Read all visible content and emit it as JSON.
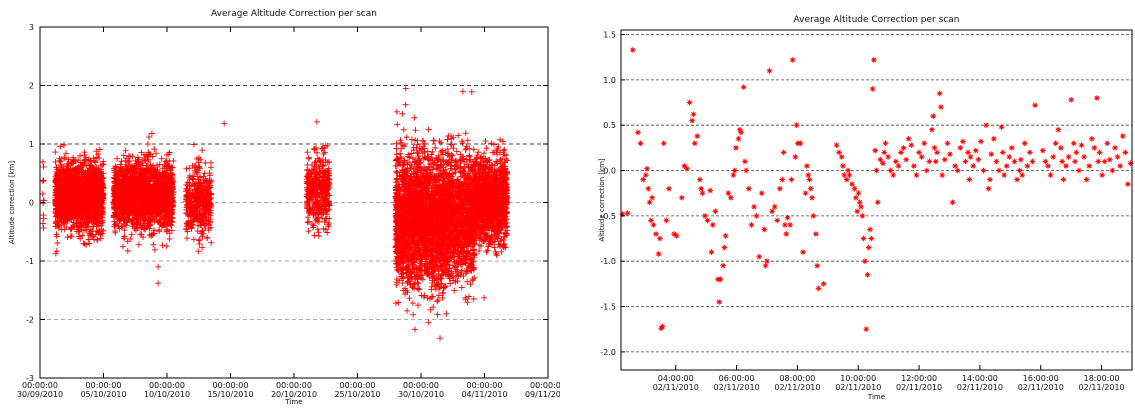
{
  "chart_data": [
    {
      "type": "scatter",
      "title": "Average Altitude Correction per scan",
      "xlabel": "Time",
      "ylabel": "Altitude correction [km]",
      "x_tick_labels": [
        [
          "00:00:00",
          "30/09/2010"
        ],
        [
          "00:00:00",
          "05/10/2010"
        ],
        [
          "00:00:00",
          "10/10/2010"
        ],
        [
          "00:00:00",
          "15/10/2010"
        ],
        [
          "00:00:00",
          "20/10/2010"
        ],
        [
          "00:00:00",
          "25/10/2010"
        ],
        [
          "00:00:00",
          "30/10/2010"
        ],
        [
          "00:00:00",
          "04/11/2010"
        ],
        [
          "00:00:00",
          "09/11/2010"
        ]
      ],
      "xlim_days": [
        0,
        40
      ],
      "ylim": [
        -3,
        3
      ],
      "y_ticks": [
        -3,
        -2,
        -1,
        0,
        1,
        2,
        3
      ],
      "marker": "+",
      "color": "#ff0000",
      "grid": "dashed horizontal lines at -2, -1, 0, 1, 2",
      "clusters": [
        {
          "x_range": [
            0.2,
            0.3
          ],
          "y_center": 0.2,
          "spread": 0.4,
          "count": 12
        },
        {
          "x_range": [
            1.2,
            5.0
          ],
          "y_center": 0.1,
          "spread": 0.28,
          "count": 1800
        },
        {
          "x_range": [
            5.8,
            10.5
          ],
          "y_center": 0.12,
          "spread": 0.28,
          "count": 1900
        },
        {
          "x_range": [
            11.5,
            13.5
          ],
          "y_center": 0.0,
          "spread": 0.3,
          "count": 450
        },
        {
          "x_range": [
            21.0,
            22.8
          ],
          "y_center": 0.2,
          "spread": 0.28,
          "count": 420
        },
        {
          "x_range": [
            28.0,
            32.3
          ],
          "y_center": -0.3,
          "spread": 0.55,
          "count": 2600
        },
        {
          "x_range": [
            32.3,
            34.2
          ],
          "y_center": -0.25,
          "spread": 0.5,
          "count": 900
        },
        {
          "x_range": [
            34.2,
            36.8
          ],
          "y_center": 0.05,
          "spread": 0.35,
          "count": 1300
        }
      ],
      "outliers": [
        {
          "x": 9.3,
          "y": -1.1
        },
        {
          "x": 9.3,
          "y": -1.38
        },
        {
          "x": 14.5,
          "y": 1.35
        },
        {
          "x": 21.8,
          "y": 1.38
        },
        {
          "x": 28.1,
          "y": 1.55
        },
        {
          "x": 28.8,
          "y": 1.95
        },
        {
          "x": 33.3,
          "y": 1.9
        },
        {
          "x": 31.5,
          "y": -2.32
        },
        {
          "x": 30.6,
          "y": -2.05
        }
      ]
    },
    {
      "type": "scatter",
      "title": "Average Altitude Correction per scan",
      "xlabel": "Time",
      "ylabel": "Altitude correction [km]",
      "x_tick_labels": [
        [
          "04:00:00",
          "02/11/2010"
        ],
        [
          "06:00:00",
          "02/11/2010"
        ],
        [
          "08:00:00",
          "02/11/2010"
        ],
        [
          "10:00:00",
          "02/11/2010"
        ],
        [
          "12:00:00",
          "02/11/2010"
        ],
        [
          "14:00:00",
          "02/11/2010"
        ],
        [
          "16:00:00",
          "02/11/2010"
        ],
        [
          "18:00:00",
          "02/11/2010"
        ]
      ],
      "x_ticks_hours": [
        4,
        6,
        8,
        10,
        12,
        14,
        16,
        18
      ],
      "xlim_hours": [
        2.2,
        19.0
      ],
      "y_ticks": [
        "1.5",
        "1.0",
        "0.5",
        "0.0",
        "-0.5",
        "-1.0",
        "-1.5",
        "-2.0"
      ],
      "y_tick_values": [
        1.5,
        1.0,
        0.5,
        0.0,
        -0.5,
        -1.0,
        -1.5,
        -2.0
      ],
      "ylim": [
        -2.2,
        1.55
      ],
      "marker": "*",
      "color": "#ff0000",
      "grid": "dashed horizontal lines at each labelled tick",
      "points": [
        [
          2.3,
          -0.48
        ],
        [
          2.5,
          -0.47
        ],
        [
          2.7,
          1.33
        ],
        [
          2.9,
          0.42
        ],
        [
          3.0,
          0.3
        ],
        [
          3.1,
          -0.1
        ],
        [
          3.2,
          -0.05
        ],
        [
          3.25,
          0.02
        ],
        [
          3.3,
          -0.2
        ],
        [
          3.35,
          -0.35
        ],
        [
          3.4,
          -0.55
        ],
        [
          3.45,
          -0.3
        ],
        [
          3.5,
          -0.6
        ],
        [
          3.6,
          -0.7
        ],
        [
          3.7,
          -0.92
        ],
        [
          3.75,
          -0.75
        ],
        [
          3.8,
          -1.74
        ],
        [
          3.85,
          -1.72
        ],
        [
          3.9,
          0.3
        ],
        [
          4.0,
          -0.55
        ],
        [
          4.1,
          -0.2
        ],
        [
          4.3,
          -0.7
        ],
        [
          4.4,
          -0.72
        ],
        [
          4.6,
          -0.3
        ],
        [
          4.7,
          0.05
        ],
        [
          4.8,
          0.02
        ],
        [
          4.9,
          0.75
        ],
        [
          5.0,
          0.55
        ],
        [
          5.05,
          0.62
        ],
        [
          5.1,
          0.3
        ],
        [
          5.2,
          0.38
        ],
        [
          5.3,
          -0.1
        ],
        [
          5.35,
          -0.2
        ],
        [
          5.4,
          -0.25
        ],
        [
          5.5,
          -0.5
        ],
        [
          5.6,
          -0.55
        ],
        [
          5.7,
          -0.22
        ],
        [
          5.75,
          -0.9
        ],
        [
          5.8,
          -0.6
        ],
        [
          5.9,
          -0.45
        ],
        [
          6.0,
          -1.2
        ],
        [
          6.05,
          -1.45
        ],
        [
          6.1,
          -1.2
        ],
        [
          6.2,
          -1.05
        ],
        [
          6.25,
          -0.85
        ],
        [
          6.3,
          -0.72
        ],
        [
          6.4,
          -0.25
        ],
        [
          6.5,
          -0.3
        ],
        [
          6.6,
          -0.05
        ],
        [
          6.65,
          0.0
        ],
        [
          6.7,
          0.25
        ],
        [
          6.8,
          0.35
        ],
        [
          6.85,
          0.45
        ],
        [
          6.9,
          0.42
        ],
        [
          7.0,
          0.92
        ],
        [
          7.05,
          0.1
        ],
        [
          7.1,
          0.0
        ],
        [
          7.2,
          -0.2
        ],
        [
          7.3,
          -0.6
        ],
        [
          7.4,
          -0.4
        ],
        [
          7.5,
          -0.5
        ],
        [
          7.6,
          -0.95
        ],
        [
          7.7,
          -0.25
        ],
        [
          7.8,
          -0.65
        ],
        [
          7.85,
          -1.05
        ],
        [
          7.9,
          -1.0
        ],
        [
          8.0,
          1.1
        ],
        [
          8.1,
          -0.45
        ],
        [
          8.2,
          -0.4
        ],
        [
          8.3,
          -0.55
        ],
        [
          8.4,
          -0.2
        ],
        [
          8.5,
          -0.1
        ],
        [
          8.55,
          0.2
        ],
        [
          8.6,
          -0.6
        ],
        [
          8.65,
          -0.7
        ],
        [
          8.7,
          -0.52
        ],
        [
          8.8,
          -0.6
        ],
        [
          8.85,
          -0.1
        ],
        [
          8.9,
          1.22
        ],
        [
          9.0,
          0.15
        ],
        [
          9.05,
          0.5
        ],
        [
          9.1,
          0.3
        ],
        [
          9.2,
          0.3
        ],
        [
          9.3,
          -0.9
        ],
        [
          9.4,
          -0.25
        ],
        [
          9.45,
          0.05
        ],
        [
          9.5,
          -0.05
        ],
        [
          9.55,
          -0.1
        ],
        [
          9.6,
          -0.2
        ],
        [
          9.65,
          -0.3
        ],
        [
          9.7,
          -0.5
        ],
        [
          9.8,
          -0.7
        ],
        [
          9.85,
          -1.05
        ],
        [
          9.9,
          -1.3
        ],
        [
          10.1,
          -1.25
        ],
        [
          10.6,
          0.28
        ],
        [
          10.7,
          0.2
        ],
        [
          10.8,
          0.15
        ],
        [
          10.85,
          0.05
        ],
        [
          10.9,
          -0.05
        ],
        [
          11.0,
          -0.1
        ],
        [
          11.05,
          0.0
        ],
        [
          11.1,
          -0.05
        ],
        [
          11.2,
          -0.15
        ],
        [
          11.3,
          -0.2
        ],
        [
          11.35,
          -0.3
        ],
        [
          11.4,
          -0.45
        ],
        [
          11.45,
          -0.25
        ],
        [
          11.5,
          -0.35
        ],
        [
          11.55,
          -0.4
        ],
        [
          11.6,
          -0.5
        ],
        [
          11.65,
          -0.75
        ],
        [
          11.7,
          -1.0
        ],
        [
          11.75,
          -1.75
        ],
        [
          11.8,
          -1.15
        ],
        [
          11.85,
          -0.85
        ],
        [
          11.9,
          -0.65
        ],
        [
          11.95,
          -0.75
        ],
        [
          12.0,
          0.9
        ],
        [
          12.05,
          1.22
        ],
        [
          12.1,
          0.22
        ],
        [
          12.15,
          0.0
        ],
        [
          12.2,
          -0.35
        ],
        [
          12.3,
          0.12
        ],
        [
          12.4,
          0.08
        ],
        [
          12.45,
          0.2
        ],
        [
          12.5,
          0.3
        ],
        [
          12.6,
          0.15
        ],
        [
          12.7,
          0.0
        ],
        [
          12.8,
          -0.05
        ],
        [
          12.9,
          0.1
        ],
        [
          13.0,
          0.05
        ],
        [
          13.1,
          0.2
        ],
        [
          13.2,
          0.25
        ],
        [
          13.3,
          0.12
        ],
        [
          13.4,
          0.35
        ],
        [
          13.5,
          0.28
        ],
        [
          13.6,
          0.05
        ],
        [
          13.7,
          -0.05
        ],
        [
          13.8,
          0.2
        ],
        [
          13.9,
          0.15
        ],
        [
          14.0,
          0.3
        ],
        [
          14.1,
          0.0
        ],
        [
          14.2,
          0.1
        ],
        [
          14.3,
          0.45
        ],
        [
          14.35,
          0.6
        ],
        [
          14.4,
          0.25
        ],
        [
          14.45,
          0.1
        ],
        [
          14.5,
          0.2
        ],
        [
          14.6,
          0.85
        ],
        [
          14.65,
          0.7
        ],
        [
          14.7,
          -0.05
        ],
        [
          14.8,
          0.12
        ],
        [
          14.9,
          0.3
        ],
        [
          15.0,
          0.18
        ],
        [
          15.1,
          -0.35
        ],
        [
          15.2,
          0.05
        ],
        [
          15.3,
          0.0
        ],
        [
          15.4,
          0.25
        ],
        [
          15.5,
          0.32
        ],
        [
          15.6,
          0.1
        ],
        [
          15.7,
          0.2
        ],
        [
          15.75,
          -0.1
        ],
        [
          15.8,
          0.15
        ],
        [
          15.9,
          0.05
        ],
        [
          16.0,
          0.22
        ],
        [
          16.1,
          0.12
        ],
        [
          16.2,
          0.32
        ],
        [
          16.3,
          0.0
        ],
        [
          16.4,
          0.5
        ],
        [
          16.5,
          -0.2
        ],
        [
          16.55,
          -0.1
        ],
        [
          16.6,
          0.18
        ],
        [
          16.7,
          0.35
        ],
        [
          16.8,
          0.1
        ],
        [
          16.9,
          0.0
        ],
        [
          17.0,
          0.48
        ],
        [
          17.05,
          0.2
        ],
        [
          17.1,
          -0.05
        ],
        [
          17.2,
          0.05
        ],
        [
          17.3,
          0.15
        ],
        [
          17.4,
          0.25
        ],
        [
          17.5,
          0.1
        ],
        [
          17.6,
          -0.1
        ],
        [
          17.7,
          0.0
        ],
        [
          17.75,
          0.12
        ],
        [
          17.8,
          -0.05
        ],
        [
          17.9,
          0.3
        ],
        [
          18.0,
          0.05
        ],
        [
          18.1,
          0.2
        ],
        [
          18.2,
          0.1
        ],
        [
          18.3,
          0.72
        ],
        [
          18.6,
          0.22
        ],
        [
          18.7,
          0.1
        ],
        [
          18.8,
          0.05
        ],
        [
          18.9,
          -0.05
        ],
        [
          19.0,
          0.15
        ],
        [
          19.1,
          0.3
        ],
        [
          19.2,
          0.45
        ],
        [
          19.3,
          0.25
        ],
        [
          19.35,
          0.1
        ],
        [
          19.4,
          -0.1
        ],
        [
          19.5,
          0.05
        ],
        [
          19.6,
          0.15
        ],
        [
          19.7,
          0.78
        ],
        [
          19.8,
          0.3
        ],
        [
          19.85,
          0.1
        ],
        [
          19.9,
          0.2
        ],
        [
          20.0,
          0.0
        ],
        [
          20.1,
          0.28
        ],
        [
          20.2,
          0.15
        ],
        [
          20.3,
          -0.1
        ],
        [
          20.4,
          0.05
        ],
        [
          20.5,
          0.35
        ],
        [
          20.6,
          0.25
        ],
        [
          20.7,
          0.8
        ],
        [
          20.75,
          0.1
        ],
        [
          20.8,
          0.2
        ],
        [
          20.9,
          -0.05
        ],
        [
          21.0,
          0.1
        ],
        [
          21.1,
          0.3
        ],
        [
          21.2,
          0.12
        ],
        [
          21.3,
          0.0
        ],
        [
          21.4,
          0.25
        ],
        [
          21.5,
          0.15
        ],
        [
          21.6,
          0.05
        ],
        [
          21.7,
          0.38
        ],
        [
          21.8,
          0.2
        ],
        [
          21.9,
          -0.15
        ],
        [
          22.0,
          0.08
        ]
      ]
    }
  ]
}
